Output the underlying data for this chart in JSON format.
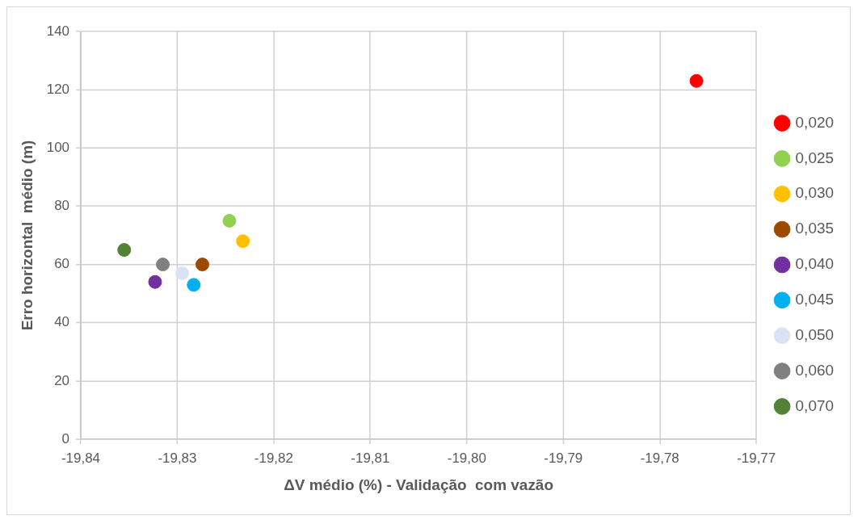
{
  "chart_data": {
    "type": "scatter",
    "xlabel": "ΔV médio (%) - Validação  com vazão",
    "ylabel": "Erro horizontal  médio (m)",
    "xlim": [
      -19.84,
      -19.77
    ],
    "xticks": [
      {
        "value": -19.84,
        "label": "-19,84"
      },
      {
        "value": -19.83,
        "label": "-19,83"
      },
      {
        "value": -19.82,
        "label": "-19,82"
      },
      {
        "value": -19.81,
        "label": "-19,81"
      },
      {
        "value": -19.8,
        "label": "-19,80"
      },
      {
        "value": -19.79,
        "label": "-19,79"
      },
      {
        "value": -19.78,
        "label": "-19,78"
      },
      {
        "value": -19.77,
        "label": "-19,77"
      }
    ],
    "ylim": [
      0,
      140
    ],
    "yticks": [
      0,
      20,
      40,
      60,
      80,
      100,
      120,
      140
    ],
    "grid": true,
    "legend": "right",
    "marker": "circle",
    "series": [
      {
        "name": "0,020",
        "color": "#ff0000",
        "x": [
          -19.7762
        ],
        "values": [
          123
        ]
      },
      {
        "name": "0,025",
        "color": "#92d050",
        "x": [
          -19.8246
        ],
        "values": [
          75
        ]
      },
      {
        "name": "0,030",
        "color": "#ffc000",
        "x": [
          -19.8232
        ],
        "values": [
          68
        ]
      },
      {
        "name": "0,035",
        "color": "#9c4a00",
        "x": [
          -19.8274
        ],
        "values": [
          60
        ]
      },
      {
        "name": "0,040",
        "color": "#7030a0",
        "x": [
          -19.8323
        ],
        "values": [
          54
        ]
      },
      {
        "name": "0,045",
        "color": "#00b0f0",
        "x": [
          -19.8283
        ],
        "values": [
          53
        ]
      },
      {
        "name": "0,050",
        "color": "#dae3f3",
        "x": [
          -19.8295
        ],
        "values": [
          57
        ]
      },
      {
        "name": "0,060",
        "color": "#808080",
        "x": [
          -19.8315
        ],
        "values": [
          60
        ]
      },
      {
        "name": "0,070",
        "color": "#548235",
        "x": [
          -19.8355
        ],
        "values": [
          65
        ]
      }
    ]
  }
}
